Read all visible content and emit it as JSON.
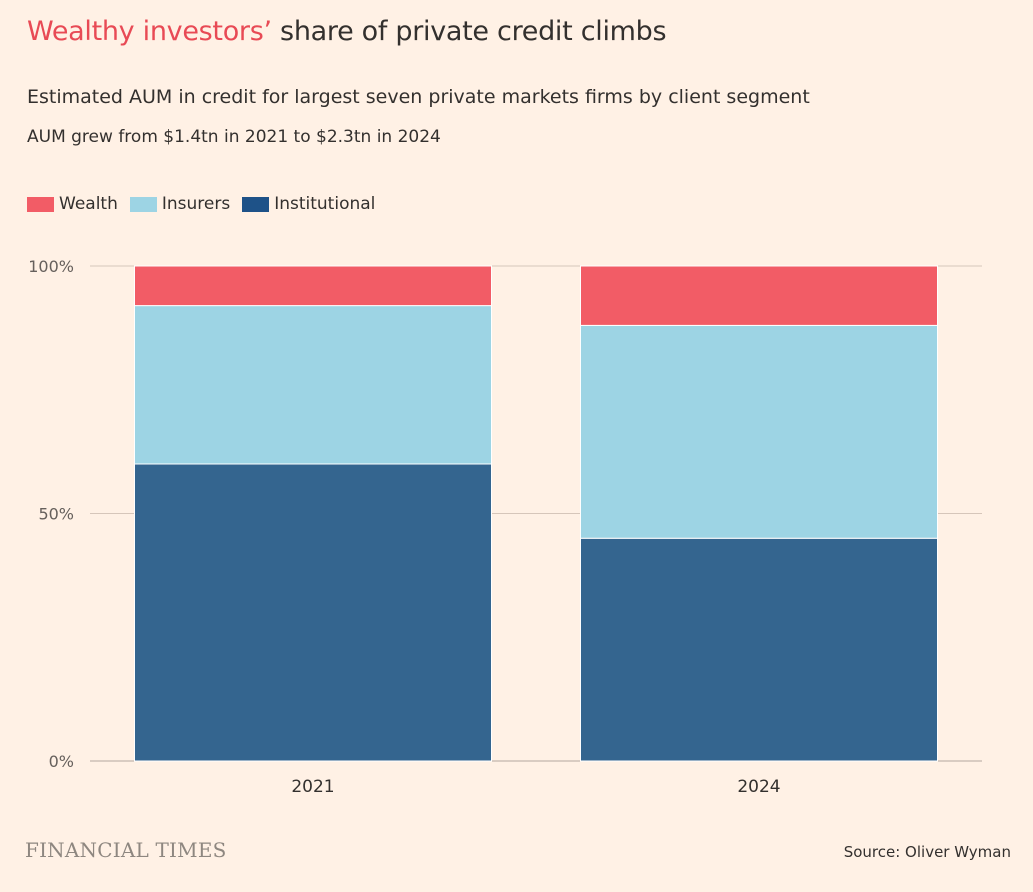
{
  "title": {
    "highlight": "Wealthy investors’",
    "rest": " share of private credit climbs"
  },
  "subtitle": "Estimated AUM in credit for largest seven private markets firms by client segment",
  "note": "AUM grew from $1.4tn in 2021 to $2.3tn in 2024",
  "source": "Source: Oliver Wyman",
  "logo_text": "FINANCIAL TIMES",
  "colors": {
    "background": "#FFF1E5",
    "wealth": "#F25C66",
    "insurers": "#9DD4E4",
    "institutional": "#34658F",
    "gridline": "#D6C6BA",
    "title_highlight": "#E84A55"
  },
  "chart_data": {
    "type": "bar",
    "stacked": true,
    "categories": [
      "2021",
      "2024"
    ],
    "series": [
      {
        "name": "Institutional",
        "values": [
          60,
          45
        ]
      },
      {
        "name": "Insurers",
        "values": [
          32,
          43
        ]
      },
      {
        "name": "Wealth",
        "values": [
          8,
          12
        ]
      }
    ],
    "ylim": [
      0,
      100
    ],
    "yticks": [
      0,
      50,
      100
    ],
    "ytick_labels": [
      "0%",
      "50%",
      "100%"
    ],
    "grid": true,
    "legend_position": "top-left",
    "legend": [
      "Wealth",
      "Insurers",
      "Institutional"
    ]
  }
}
